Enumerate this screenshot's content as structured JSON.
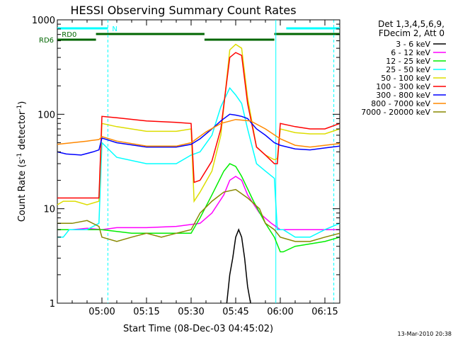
{
  "chart_data": {
    "type": "line",
    "title": "HESSI Observing Summary Count Rates",
    "xlabel": "Start Time (08-Dec-03 04:45:02)",
    "ylabel_main": "Count Rate (s",
    "ylabel_sup1": "-1",
    "ylabel_mid": " detector",
    "ylabel_sup2": "-1",
    "ylabel_end": ")",
    "yscale": "log",
    "ylim": [
      1,
      1000
    ],
    "xlim_minutes": [
      0,
      95
    ],
    "x_ticks": [
      {
        "m": 15,
        "label": "05:00"
      },
      {
        "m": 30,
        "label": "05:15"
      },
      {
        "m": 45,
        "label": "05:30"
      },
      {
        "m": 60,
        "label": "05:45"
      },
      {
        "m": 75,
        "label": "06:00"
      },
      {
        "m": 90,
        "label": "06:15"
      }
    ],
    "y_ticks": [
      {
        "v": 1,
        "label": "1"
      },
      {
        "v": 10,
        "label": "10"
      },
      {
        "v": 100,
        "label": "100"
      },
      {
        "v": 1000,
        "label": "1000"
      }
    ],
    "legend_header": [
      "Det 1,3,4,5,6,9,",
      "FDecim 2, Att 0"
    ],
    "series": [
      {
        "name": "3 - 6 keV",
        "color": "#000000",
        "points": [
          [
            57,
            1
          ],
          [
            58,
            2
          ],
          [
            59,
            3
          ],
          [
            60,
            5
          ],
          [
            61,
            6
          ],
          [
            62,
            5
          ],
          [
            63,
            3
          ],
          [
            64,
            1.5
          ],
          [
            65,
            1
          ]
        ]
      },
      {
        "name": "6 - 12 keV",
        "color": "#ff00ff",
        "points": [
          [
            0,
            6
          ],
          [
            5,
            6
          ],
          [
            10,
            6.2
          ],
          [
            15,
            6
          ],
          [
            20,
            6.3
          ],
          [
            30,
            6.3
          ],
          [
            40,
            6.5
          ],
          [
            48,
            7
          ],
          [
            52,
            9
          ],
          [
            56,
            14
          ],
          [
            58,
            20
          ],
          [
            60,
            22
          ],
          [
            62,
            20
          ],
          [
            64,
            14
          ],
          [
            68,
            9
          ],
          [
            72,
            7
          ],
          [
            75,
            6
          ],
          [
            76,
            6
          ],
          [
            80,
            6
          ],
          [
            90,
            6
          ],
          [
            95,
            6
          ]
        ]
      },
      {
        "name": "12 - 25 keV",
        "color": "#00ee00",
        "points": [
          [
            0,
            6
          ],
          [
            5,
            6
          ],
          [
            15,
            6
          ],
          [
            25,
            5.5
          ],
          [
            35,
            5.5
          ],
          [
            45,
            5.5
          ],
          [
            48,
            8
          ],
          [
            52,
            14
          ],
          [
            56,
            25
          ],
          [
            58,
            30
          ],
          [
            60,
            28
          ],
          [
            62,
            22
          ],
          [
            66,
            12
          ],
          [
            70,
            7
          ],
          [
            73,
            5
          ],
          [
            75,
            3.5
          ],
          [
            76,
            3.5
          ],
          [
            80,
            4
          ],
          [
            90,
            4.5
          ],
          [
            95,
            5
          ]
        ]
      },
      {
        "name": "25 - 50 keV",
        "color": "#00ffff",
        "points": [
          [
            0,
            5
          ],
          [
            2,
            5
          ],
          [
            4,
            6
          ],
          [
            6,
            6
          ],
          [
            10,
            6
          ],
          [
            14,
            7
          ],
          [
            15,
            50
          ],
          [
            20,
            35
          ],
          [
            30,
            30
          ],
          [
            40,
            30
          ],
          [
            45,
            37
          ],
          [
            48,
            40
          ],
          [
            52,
            60
          ],
          [
            55,
            120
          ],
          [
            58,
            190
          ],
          [
            60,
            160
          ],
          [
            62,
            130
          ],
          [
            64,
            70
          ],
          [
            67,
            30
          ],
          [
            70,
            25
          ],
          [
            73,
            21
          ],
          [
            74,
            6
          ],
          [
            76,
            6
          ],
          [
            80,
            5
          ],
          [
            85,
            5
          ],
          [
            90,
            6
          ],
          [
            95,
            7
          ]
        ]
      },
      {
        "name": "50 - 100 keV",
        "color": "#dddd00",
        "points": [
          [
            0,
            11
          ],
          [
            2,
            12
          ],
          [
            6,
            12
          ],
          [
            10,
            11
          ],
          [
            14,
            12
          ],
          [
            15,
            80
          ],
          [
            20,
            74
          ],
          [
            30,
            66
          ],
          [
            40,
            66
          ],
          [
            45,
            70
          ],
          [
            46,
            12
          ],
          [
            48,
            15
          ],
          [
            52,
            25
          ],
          [
            55,
            60
          ],
          [
            58,
            480
          ],
          [
            60,
            550
          ],
          [
            62,
            500
          ],
          [
            64,
            150
          ],
          [
            67,
            45
          ],
          [
            70,
            37
          ],
          [
            73,
            33
          ],
          [
            74,
            34
          ],
          [
            75,
            70
          ],
          [
            80,
            64
          ],
          [
            85,
            62
          ],
          [
            90,
            62
          ],
          [
            95,
            70
          ]
        ]
      },
      {
        "name": "100 - 300 keV",
        "color": "#ff0000",
        "points": [
          [
            0,
            13
          ],
          [
            2,
            13
          ],
          [
            6,
            13
          ],
          [
            10,
            13
          ],
          [
            14,
            13
          ],
          [
            15,
            95
          ],
          [
            20,
            92
          ],
          [
            30,
            85
          ],
          [
            40,
            82
          ],
          [
            45,
            80
          ],
          [
            46,
            19
          ],
          [
            48,
            20
          ],
          [
            52,
            32
          ],
          [
            55,
            70
          ],
          [
            58,
            400
          ],
          [
            60,
            450
          ],
          [
            62,
            420
          ],
          [
            64,
            130
          ],
          [
            67,
            45
          ],
          [
            70,
            37
          ],
          [
            73,
            30
          ],
          [
            74,
            30
          ],
          [
            75,
            80
          ],
          [
            80,
            74
          ],
          [
            85,
            70
          ],
          [
            90,
            70
          ],
          [
            95,
            80
          ]
        ]
      },
      {
        "name": "300 - 800 keV",
        "color": "#0000ff",
        "points": [
          [
            0,
            40
          ],
          [
            3,
            38
          ],
          [
            8,
            37
          ],
          [
            12,
            40
          ],
          [
            14,
            42
          ],
          [
            15,
            56
          ],
          [
            20,
            50
          ],
          [
            30,
            45
          ],
          [
            40,
            45
          ],
          [
            45,
            48
          ],
          [
            48,
            55
          ],
          [
            52,
            70
          ],
          [
            55,
            85
          ],
          [
            58,
            100
          ],
          [
            60,
            98
          ],
          [
            62,
            95
          ],
          [
            64,
            90
          ],
          [
            67,
            70
          ],
          [
            70,
            60
          ],
          [
            73,
            50
          ],
          [
            75,
            47
          ],
          [
            80,
            43
          ],
          [
            85,
            42
          ],
          [
            90,
            44
          ],
          [
            95,
            46
          ]
        ]
      },
      {
        "name": "800 - 7000 keV",
        "color": "#ff8800",
        "points": [
          [
            0,
            48
          ],
          [
            5,
            50
          ],
          [
            10,
            52
          ],
          [
            14,
            54
          ],
          [
            15,
            58
          ],
          [
            20,
            52
          ],
          [
            30,
            46
          ],
          [
            40,
            46
          ],
          [
            45,
            50
          ],
          [
            50,
            65
          ],
          [
            55,
            80
          ],
          [
            60,
            88
          ],
          [
            65,
            85
          ],
          [
            70,
            70
          ],
          [
            75,
            55
          ],
          [
            80,
            47
          ],
          [
            85,
            45
          ],
          [
            90,
            47
          ],
          [
            95,
            49
          ]
        ]
      },
      {
        "name": "7000 - 20000 keV",
        "color": "#888800",
        "points": [
          [
            0,
            7
          ],
          [
            5,
            7
          ],
          [
            10,
            7.5
          ],
          [
            14,
            6.5
          ],
          [
            15,
            5
          ],
          [
            20,
            4.5
          ],
          [
            25,
            5
          ],
          [
            30,
            5.5
          ],
          [
            35,
            5
          ],
          [
            40,
            5.5
          ],
          [
            45,
            6
          ],
          [
            48,
            9
          ],
          [
            52,
            12
          ],
          [
            56,
            15
          ],
          [
            60,
            16
          ],
          [
            64,
            13
          ],
          [
            68,
            10
          ],
          [
            70,
            7
          ],
          [
            73,
            6
          ],
          [
            75,
            5
          ],
          [
            80,
            4.5
          ],
          [
            85,
            4.5
          ],
          [
            90,
            5
          ],
          [
            95,
            5.5
          ]
        ]
      }
    ],
    "flag_bars": [
      {
        "label": "N",
        "color": "#00ffff",
        "row": 0,
        "segments": [
          [
            0,
            17
          ],
          [
            77,
            95
          ]
        ]
      },
      {
        "label": "RD0",
        "color": "#006600",
        "row": 1,
        "segments": [
          [
            13,
            49.5
          ],
          [
            73,
            95
          ]
        ]
      },
      {
        "label": "RD6",
        "color": "#006600",
        "row": 2,
        "segments": [
          [
            0,
            13
          ],
          [
            49.5,
            73
          ]
        ]
      }
    ],
    "vlines_solid": [
      73.5
    ],
    "vlines_dashed": [
      17,
      93
    ],
    "grid": false,
    "legend_placement": "right"
  },
  "timestamp": "13-Mar-2010 20:38"
}
